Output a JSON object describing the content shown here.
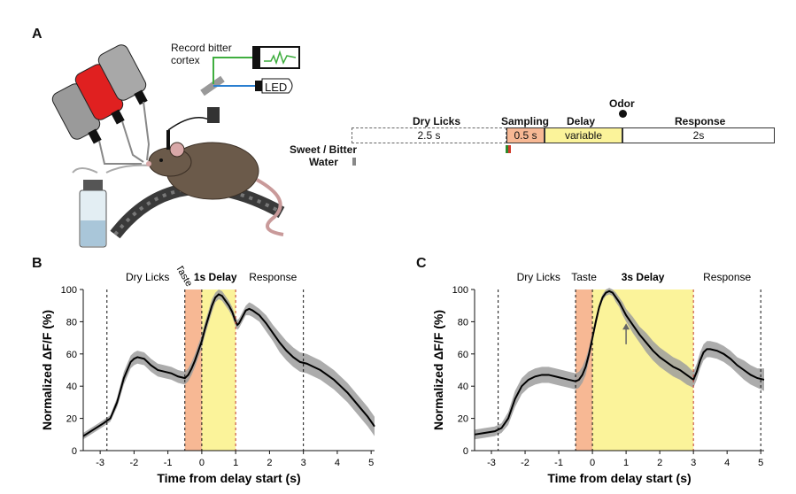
{
  "panels": {
    "a": "A",
    "b": "B",
    "c": "C"
  },
  "illustration": {
    "record_label_line1": "Record bitter",
    "record_label_line2": "cortex",
    "led_label": "LED",
    "colors": {
      "bottle": "#8a8a8a",
      "bottle_red": "#e02020",
      "mouse": "#6b5a4a",
      "wheel": "#3a3a3a",
      "fiber_green": "#3fae3f",
      "fiber_blue": "#2a7fd0"
    }
  },
  "timeline": {
    "odor_label": "Odor",
    "sweet_bitter_label": "Sweet / Bitter",
    "water_label": "Water",
    "segments": [
      {
        "header": "Dry Licks",
        "value": "2.5 s",
        "color": "#ffffff",
        "dashed": true
      },
      {
        "header": "Sampling",
        "value": "0.5 s",
        "color": "#f7b894",
        "dashed": false
      },
      {
        "header": "Delay",
        "value": "variable",
        "color": "#fbf39a",
        "dashed": false
      },
      {
        "header": "Response",
        "value": "2s",
        "color": "#ffffff",
        "dashed": false
      }
    ]
  },
  "chart_data": [
    {
      "type": "line",
      "panel": "B",
      "xlabel": "Time from delay start (s)",
      "ylabel": "Normalized ΔF/F (%)",
      "xlim": [
        -3.5,
        5.1
      ],
      "ylim": [
        0,
        100
      ],
      "xticks": [
        -3,
        -2,
        -1,
        0,
        1,
        2,
        3,
        4,
        5
      ],
      "yticks": [
        0,
        20,
        40,
        60,
        80,
        100
      ],
      "epoch_labels": [
        {
          "text": "Dry Licks",
          "x": -1.6,
          "bold": false
        },
        {
          "text": "Taste",
          "x": -0.6,
          "bold": false,
          "rotated": true
        },
        {
          "text": "1s Delay",
          "x": 0.4,
          "bold": true
        },
        {
          "text": "Response",
          "x": 2.1,
          "bold": false
        }
      ],
      "shaded": [
        {
          "x0": -0.5,
          "x1": 0,
          "color": "#f7b894"
        },
        {
          "x0": 0,
          "x1": 1,
          "color": "#fbf39a"
        }
      ],
      "vlines": [
        {
          "x": -2.8,
          "color": "#111111"
        },
        {
          "x": -0.5,
          "color": "#111111"
        },
        {
          "x": 0,
          "color": "#111111"
        },
        {
          "x": 1,
          "color": "#c0392b"
        },
        {
          "x": 3,
          "color": "#111111"
        }
      ],
      "series": [
        {
          "color": "#000000",
          "band_color": "#9e9e9e",
          "x": [
            -3.5,
            -3.2,
            -2.9,
            -2.7,
            -2.5,
            -2.3,
            -2.1,
            -2.0,
            -1.9,
            -1.7,
            -1.5,
            -1.3,
            -1.1,
            -0.9,
            -0.7,
            -0.5,
            -0.4,
            -0.3,
            -0.2,
            -0.1,
            0.0,
            0.1,
            0.2,
            0.3,
            0.4,
            0.5,
            0.6,
            0.7,
            0.8,
            0.9,
            1.0,
            1.05,
            1.1,
            1.2,
            1.3,
            1.4,
            1.5,
            1.7,
            1.9,
            2.1,
            2.3,
            2.5,
            2.7,
            2.9,
            3.1,
            3.3,
            3.5,
            3.7,
            3.9,
            4.1,
            4.3,
            4.5,
            4.7,
            4.9,
            5.1
          ],
          "y": [
            9,
            13,
            17,
            20,
            30,
            45,
            55,
            57,
            58,
            57,
            53,
            50,
            49,
            48,
            46,
            45,
            47,
            51,
            56,
            62,
            68,
            76,
            83,
            90,
            95,
            97,
            96,
            93,
            90,
            86,
            80,
            78,
            79,
            83,
            87,
            88,
            87,
            84,
            79,
            73,
            67,
            62,
            58,
            55,
            54,
            52,
            50,
            47,
            44,
            40,
            36,
            31,
            26,
            21,
            15
          ],
          "err": [
            2,
            2,
            2,
            2,
            3,
            4,
            4,
            4,
            4,
            4,
            4,
            4,
            4,
            4,
            4,
            4,
            4,
            4,
            4,
            4,
            4,
            4,
            4,
            4,
            3,
            3,
            3,
            3,
            3,
            3,
            3,
            3,
            3,
            3,
            3,
            4,
            4,
            4,
            5,
            5,
            6,
            6,
            6,
            6,
            6,
            6,
            6,
            6,
            6,
            6,
            6,
            6,
            6,
            6,
            6
          ]
        }
      ]
    },
    {
      "type": "line",
      "panel": "C",
      "xlabel": "Time from delay start (s)",
      "ylabel": "Normalized ΔF/F (%)",
      "xlim": [
        -3.5,
        5.1
      ],
      "ylim": [
        0,
        100
      ],
      "xticks": [
        -3,
        -2,
        -1,
        0,
        1,
        2,
        3,
        4,
        5
      ],
      "yticks": [
        0,
        20,
        40,
        60,
        80,
        100
      ],
      "epoch_labels": [
        {
          "text": "Dry Licks",
          "x": -1.6,
          "bold": false
        },
        {
          "text": "Taste",
          "x": -0.25,
          "bold": false,
          "rotated": false
        },
        {
          "text": "3s Delay",
          "x": 1.5,
          "bold": true
        },
        {
          "text": "Response",
          "x": 4.0,
          "bold": false
        }
      ],
      "shaded": [
        {
          "x0": -0.5,
          "x1": 0,
          "color": "#f7b894"
        },
        {
          "x0": 0,
          "x1": 3,
          "color": "#fbf39a"
        }
      ],
      "vlines": [
        {
          "x": -2.8,
          "color": "#111111"
        },
        {
          "x": -0.5,
          "color": "#111111"
        },
        {
          "x": 0,
          "color": "#111111"
        },
        {
          "x": 3,
          "color": "#c0392b"
        },
        {
          "x": 5,
          "color": "#111111"
        }
      ],
      "arrow": {
        "x": 1.0,
        "y_from": 66,
        "y_to": 79
      },
      "series": [
        {
          "color": "#000000",
          "band_color": "#9e9e9e",
          "x": [
            -3.5,
            -3.2,
            -2.9,
            -2.7,
            -2.5,
            -2.3,
            -2.1,
            -1.9,
            -1.7,
            -1.5,
            -1.3,
            -1.1,
            -0.9,
            -0.7,
            -0.5,
            -0.4,
            -0.3,
            -0.2,
            -0.1,
            0.0,
            0.1,
            0.2,
            0.3,
            0.4,
            0.5,
            0.6,
            0.7,
            0.8,
            0.9,
            1.0,
            1.2,
            1.4,
            1.6,
            1.8,
            2.0,
            2.2,
            2.4,
            2.6,
            2.8,
            3.0,
            3.1,
            3.2,
            3.3,
            3.4,
            3.5,
            3.7,
            3.9,
            4.1,
            4.3,
            4.5,
            4.7,
            4.9,
            5.1
          ],
          "y": [
            10,
            11,
            12,
            14,
            20,
            32,
            40,
            44,
            46,
            47,
            47,
            46,
            45,
            44,
            43,
            44,
            47,
            52,
            60,
            70,
            80,
            89,
            95,
            98,
            99,
            98,
            95,
            92,
            88,
            84,
            78,
            72,
            67,
            62,
            58,
            55,
            52,
            50,
            47,
            44,
            49,
            56,
            61,
            63,
            63,
            62,
            60,
            57,
            53,
            50,
            47,
            45,
            44
          ],
          "err": [
            3,
            3,
            3,
            3,
            4,
            5,
            5,
            5,
            5,
            5,
            5,
            5,
            5,
            5,
            5,
            5,
            5,
            5,
            4,
            3,
            3,
            2,
            2,
            2,
            2,
            2,
            3,
            3,
            4,
            4,
            5,
            5,
            6,
            6,
            6,
            6,
            6,
            6,
            6,
            5,
            5,
            5,
            5,
            5,
            5,
            5,
            5,
            5,
            5,
            6,
            6,
            6,
            7
          ]
        }
      ]
    }
  ]
}
